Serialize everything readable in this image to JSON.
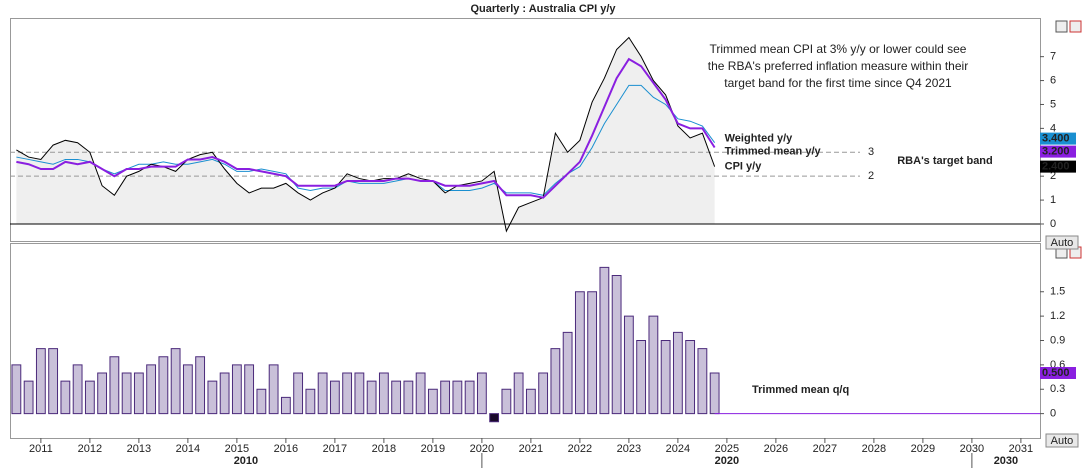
{
  "chart_data": [
    {
      "type": "line",
      "title": "Quarterly : Australia CPI y/y",
      "annotation": [
        "Trimmed mean CPI at 3% y/y or lower could see",
        "the RBA's preferred inflation measure within their",
        "target band for the first time since Q4 2021"
      ],
      "band_label": "RBA's target band",
      "reference_lines": [
        {
          "value": 3,
          "label": "3"
        },
        {
          "value": 2,
          "label": "2"
        }
      ],
      "scale_button": "Auto",
      "x": [
        2010.5,
        2010.75,
        2011,
        2011.25,
        2011.5,
        2011.75,
        2012,
        2012.25,
        2012.5,
        2012.75,
        2013,
        2013.25,
        2013.5,
        2013.75,
        2014,
        2014.25,
        2014.5,
        2014.75,
        2015,
        2015.25,
        2015.5,
        2015.75,
        2016,
        2016.25,
        2016.5,
        2016.75,
        2017,
        2017.25,
        2017.5,
        2017.75,
        2018,
        2018.25,
        2018.5,
        2018.75,
        2019,
        2019.25,
        2019.5,
        2019.75,
        2020,
        2020.25,
        2020.5,
        2020.75,
        2021,
        2021.25,
        2021.5,
        2021.75,
        2022,
        2022.25,
        2022.5,
        2022.75,
        2023,
        2023.25,
        2023.5,
        2023.75,
        2024,
        2024.25,
        2024.5,
        2024.75
      ],
      "xlim": [
        2010.37,
        2031.39
      ],
      "ylim": [
        -0.67,
        8.45
      ],
      "yticks": [
        0,
        1,
        2,
        3,
        4,
        5,
        6,
        7
      ],
      "series": [
        {
          "name": "CPI y/y",
          "color": "#000000",
          "last_value_label": "2.400",
          "values": [
            3.1,
            2.8,
            2.7,
            3.3,
            3.5,
            3.4,
            3.0,
            1.6,
            1.2,
            2.0,
            2.2,
            2.5,
            2.4,
            2.2,
            2.7,
            2.9,
            3.0,
            2.3,
            1.7,
            1.3,
            1.5,
            1.5,
            1.7,
            1.3,
            1.0,
            1.3,
            1.5,
            2.1,
            1.9,
            1.8,
            1.9,
            1.9,
            2.1,
            1.9,
            1.8,
            1.3,
            1.6,
            1.7,
            1.8,
            2.2,
            -0.3,
            0.7,
            0.9,
            1.1,
            3.8,
            3.0,
            3.5,
            5.1,
            6.1,
            7.3,
            7.8,
            7.0,
            6.0,
            5.4,
            4.1,
            3.6,
            3.8,
            2.4
          ]
        },
        {
          "name": "Trimmed mean y/y",
          "color": "#8a1fe0",
          "last_value_label": "3.200",
          "values": [
            2.6,
            2.5,
            2.3,
            2.3,
            2.6,
            2.5,
            2.6,
            2.3,
            2.0,
            2.3,
            2.3,
            2.4,
            2.4,
            2.4,
            2.7,
            2.7,
            2.8,
            2.6,
            2.3,
            2.3,
            2.2,
            2.1,
            2.0,
            1.6,
            1.6,
            1.6,
            1.6,
            1.8,
            1.8,
            1.8,
            1.8,
            1.9,
            1.9,
            1.8,
            1.8,
            1.6,
            1.6,
            1.6,
            1.7,
            1.8,
            1.2,
            1.2,
            1.2,
            1.1,
            1.6,
            2.1,
            2.6,
            3.7,
            4.9,
            6.1,
            6.9,
            6.6,
            5.9,
            5.2,
            4.2,
            4.0,
            4.0,
            3.2
          ]
        },
        {
          "name": "Weighted y/y",
          "color": "#1a8fd0",
          "last_value_label": "3.400",
          "values": [
            2.8,
            2.7,
            2.6,
            2.5,
            2.7,
            2.7,
            2.6,
            2.3,
            2.1,
            2.3,
            2.5,
            2.5,
            2.6,
            2.5,
            2.5,
            2.6,
            2.7,
            2.5,
            2.2,
            2.2,
            2.3,
            2.2,
            2.1,
            1.5,
            1.4,
            1.5,
            1.5,
            1.8,
            1.7,
            1.7,
            1.7,
            1.8,
            1.9,
            1.8,
            1.8,
            1.4,
            1.4,
            1.4,
            1.5,
            1.7,
            1.3,
            1.3,
            1.3,
            1.2,
            1.7,
            2.1,
            2.4,
            3.2,
            4.2,
            5.0,
            5.8,
            5.8,
            5.3,
            5.0,
            4.4,
            4.3,
            4.1,
            3.4
          ]
        }
      ]
    },
    {
      "type": "bar",
      "scale_button": "Auto",
      "x": [
        2010.5,
        2010.75,
        2011,
        2011.25,
        2011.5,
        2011.75,
        2012,
        2012.25,
        2012.5,
        2012.75,
        2013,
        2013.25,
        2013.5,
        2013.75,
        2014,
        2014.25,
        2014.5,
        2014.75,
        2015,
        2015.25,
        2015.5,
        2015.75,
        2016,
        2016.25,
        2016.5,
        2016.75,
        2017,
        2017.25,
        2017.5,
        2017.75,
        2018,
        2018.25,
        2018.5,
        2018.75,
        2019,
        2019.25,
        2019.5,
        2019.75,
        2020,
        2020.25,
        2020.5,
        2020.75,
        2021,
        2021.25,
        2021.5,
        2021.75,
        2022,
        2022.25,
        2022.5,
        2022.75,
        2023,
        2023.25,
        2023.5,
        2023.75,
        2024,
        2024.25,
        2024.5,
        2024.75
      ],
      "xlim": [
        2010.37,
        2031.39
      ],
      "xticks": [
        2011,
        2012,
        2013,
        2014,
        2015,
        2016,
        2017,
        2018,
        2019,
        2020,
        2021,
        2022,
        2023,
        2024,
        2025,
        2026,
        2027,
        2028,
        2029,
        2030,
        2031
      ],
      "xticks_major": [
        2010,
        2020,
        2030
      ],
      "ylim": [
        -0.3,
        2.1
      ],
      "yticks": [
        0,
        0.3,
        0.6,
        0.9,
        1.2,
        1.5
      ],
      "series": [
        {
          "name": "Trimmed mean q/q",
          "color": "#c9c0d9",
          "edge_color": "#4b2a7b",
          "negative_color": "#1a0a2a",
          "last_value_label": "0.500",
          "values": [
            0.6,
            0.4,
            0.8,
            0.8,
            0.4,
            0.6,
            0.4,
            0.5,
            0.7,
            0.5,
            0.5,
            0.6,
            0.7,
            0.8,
            0.6,
            0.7,
            0.4,
            0.5,
            0.6,
            0.6,
            0.3,
            0.6,
            0.2,
            0.5,
            0.3,
            0.5,
            0.4,
            0.5,
            0.5,
            0.4,
            0.5,
            0.4,
            0.4,
            0.5,
            0.3,
            0.4,
            0.4,
            0.4,
            0.5,
            -0.1,
            0.3,
            0.5,
            0.3,
            0.5,
            0.8,
            1.0,
            1.5,
            1.5,
            1.8,
            1.7,
            1.2,
            0.9,
            1.2,
            0.9,
            1.0,
            0.9,
            0.8,
            0.5
          ]
        }
      ]
    }
  ]
}
